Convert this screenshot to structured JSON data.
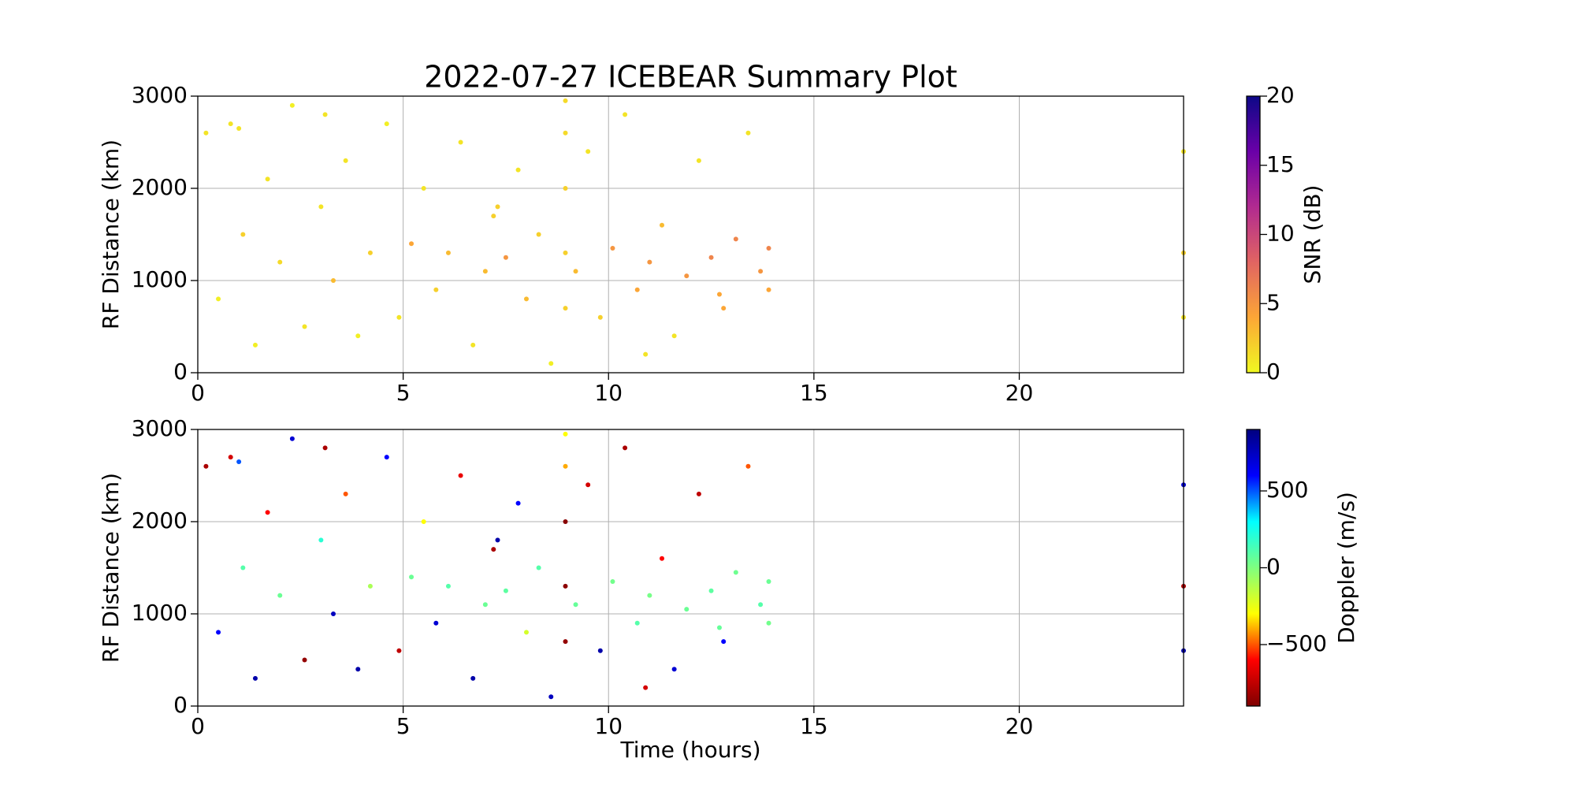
{
  "chart_data": [
    {
      "type": "scatter",
      "title": "2022-07-27 ICEBEAR Summary Plot",
      "ylabel": "RF Distance (km)",
      "xlim": [
        0,
        24
      ],
      "ylim": [
        0,
        3000
      ],
      "xticks": [
        0,
        5,
        10,
        15,
        20
      ],
      "yticks": [
        0,
        1000,
        2000,
        3000
      ],
      "grid": true,
      "x": [
        0.2,
        0.5,
        0.8,
        1.1,
        1.4,
        1.7,
        2.0,
        2.3,
        2.6,
        3.0,
        3.3,
        3.6,
        3.9,
        4.2,
        4.6,
        4.9,
        5.2,
        5.5,
        5.8,
        6.1,
        6.4,
        6.7,
        7.0,
        7.2,
        7.5,
        7.8,
        8.0,
        8.3,
        8.6,
        8.95,
        8.95,
        8.95,
        8.95,
        8.95,
        9.2,
        9.5,
        9.8,
        10.1,
        10.4,
        10.7,
        11.0,
        11.3,
        11.6,
        11.9,
        12.2,
        12.5,
        12.8,
        13.1,
        13.4,
        13.7,
        13.9,
        13.9,
        7.3,
        10.9,
        12.7,
        3.1,
        1.0,
        24,
        24,
        24
      ],
      "values": [
        2600,
        800,
        2700,
        1500,
        300,
        2100,
        1200,
        2900,
        500,
        1800,
        1000,
        2300,
        400,
        1300,
        2700,
        600,
        1400,
        2000,
        900,
        1300,
        2500,
        300,
        1100,
        1700,
        1250,
        2200,
        800,
        1500,
        100,
        700,
        1300,
        2000,
        2600,
        2950,
        1100,
        2400,
        600,
        1350,
        2800,
        900,
        1200,
        1600,
        400,
        1050,
        2300,
        1250,
        700,
        1450,
        2600,
        1100,
        1350,
        900,
        1800,
        200,
        850,
        2800,
        2650,
        600,
        1300,
        2400
      ],
      "c": [
        1,
        0.5,
        1,
        2,
        0.5,
        1,
        1.5,
        0.5,
        1,
        1,
        3,
        1,
        0.5,
        2,
        0.5,
        1,
        4,
        1,
        2,
        3,
        1,
        1,
        3,
        2,
        5,
        1,
        3,
        2,
        0.5,
        2,
        2,
        2,
        1.5,
        1.5,
        3,
        1,
        2,
        5,
        1,
        4,
        5,
        3,
        1,
        5,
        1,
        6,
        4,
        6,
        1,
        5,
        6,
        4,
        2,
        1,
        4,
        1,
        1,
        1,
        2,
        1
      ],
      "colorbar": {
        "label": "SNR (dB)",
        "lim": [
          0,
          20
        ],
        "ticks": [
          0,
          5,
          10,
          15,
          20
        ],
        "colormap": [
          "#f0f921",
          "#fca636",
          "#e16462",
          "#b12a90",
          "#6a00a8",
          "#0d0887"
        ]
      }
    },
    {
      "type": "scatter",
      "ylabel": "RF Distance (km)",
      "xlabel": "Time (hours)",
      "xlim": [
        0,
        24
      ],
      "ylim": [
        0,
        3000
      ],
      "xticks": [
        0,
        5,
        10,
        15,
        20
      ],
      "yticks": [
        0,
        1000,
        2000,
        3000
      ],
      "grid": true,
      "x": [
        0.2,
        0.5,
        0.8,
        1.1,
        1.4,
        1.7,
        2.0,
        2.3,
        2.6,
        3.0,
        3.3,
        3.6,
        3.9,
        4.2,
        4.6,
        4.9,
        5.2,
        5.5,
        5.8,
        6.1,
        6.4,
        6.7,
        7.0,
        7.2,
        7.5,
        7.8,
        8.0,
        8.3,
        8.6,
        8.95,
        8.95,
        8.95,
        8.95,
        8.95,
        9.2,
        9.5,
        9.8,
        10.1,
        10.4,
        10.7,
        11.0,
        11.3,
        11.6,
        11.9,
        12.2,
        12.5,
        12.8,
        13.1,
        13.4,
        13.7,
        13.9,
        13.9,
        7.3,
        10.9,
        12.7,
        3.1,
        1.0,
        24,
        24,
        24
      ],
      "values": [
        2600,
        800,
        2700,
        1500,
        300,
        2100,
        1200,
        2900,
        500,
        1800,
        1000,
        2300,
        400,
        1300,
        2700,
        600,
        1400,
        2000,
        900,
        1300,
        2500,
        300,
        1100,
        1700,
        1250,
        2200,
        800,
        1500,
        100,
        700,
        1300,
        2000,
        2600,
        2950,
        1100,
        2400,
        600,
        1350,
        2800,
        900,
        1200,
        1600,
        400,
        1050,
        2300,
        1250,
        700,
        1450,
        2600,
        1100,
        1350,
        900,
        1800,
        200,
        850,
        2800,
        2650,
        600,
        1300,
        2400
      ],
      "c": [
        -800,
        600,
        -700,
        100,
        800,
        -600,
        50,
        700,
        -850,
        200,
        750,
        -500,
        800,
        -100,
        600,
        -750,
        50,
        -300,
        700,
        100,
        -650,
        800,
        50,
        -800,
        80,
        600,
        -200,
        100,
        750,
        -850,
        -870,
        -880,
        -400,
        -300,
        60,
        -700,
        800,
        30,
        -800,
        100,
        20,
        -600,
        700,
        50,
        -750,
        80,
        600,
        40,
        -500,
        100,
        50,
        30,
        800,
        -700,
        60,
        -800,
        500,
        800,
        -800,
        700
      ],
      "colorbar": {
        "label": "Doppler (m/s)",
        "lim": [
          -900,
          900
        ],
        "ticks": [
          {
            "value": -500,
            "label": "−500"
          },
          0,
          500
        ],
        "colormap": [
          "#7f0000",
          "#ff0000",
          "#ffff00",
          "#7fff7f",
          "#00ffff",
          "#0000ff",
          "#00007f"
        ]
      }
    }
  ]
}
